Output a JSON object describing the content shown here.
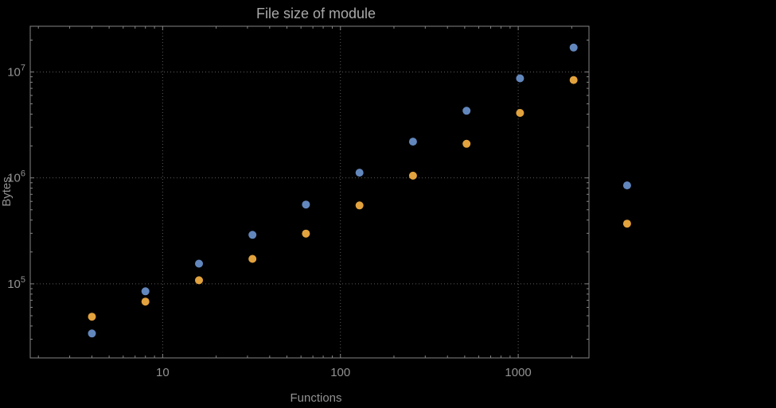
{
  "chart_data": {
    "type": "scatter",
    "title": "File size of module",
    "xlabel": "Functions",
    "ylabel": "Bytes",
    "x_scale": "log",
    "y_scale": "log",
    "grid": "dotted-major-decades",
    "legend": "none",
    "xlim": [
      1.8,
      2500
    ],
    "ylim": [
      20000,
      27000000
    ],
    "x_ticks": [
      {
        "value": 10,
        "label": "10"
      },
      {
        "value": 100,
        "label": "100"
      },
      {
        "value": 1000,
        "label": "1000"
      }
    ],
    "y_ticks": [
      {
        "value": 100000,
        "base": "10",
        "exp": "5"
      },
      {
        "value": 1000000,
        "base": "10",
        "exp": "6"
      },
      {
        "value": 10000000,
        "base": "10",
        "exp": "7"
      }
    ],
    "x": [
      4,
      8,
      16,
      32,
      64,
      128,
      256,
      512,
      1024,
      2048,
      4096
    ],
    "series": [
      {
        "name": "blue",
        "color": "#6287bd",
        "values": [
          34000,
          85000,
          155000,
          290000,
          560000,
          1120000,
          2200000,
          4300000,
          8700000,
          17000000,
          850000
        ]
      },
      {
        "name": "orange",
        "color": "#e2a23d",
        "values": [
          49000,
          68000,
          108000,
          172000,
          298000,
          550000,
          1050000,
          2100000,
          4100000,
          8400000,
          370000
        ]
      }
    ]
  }
}
